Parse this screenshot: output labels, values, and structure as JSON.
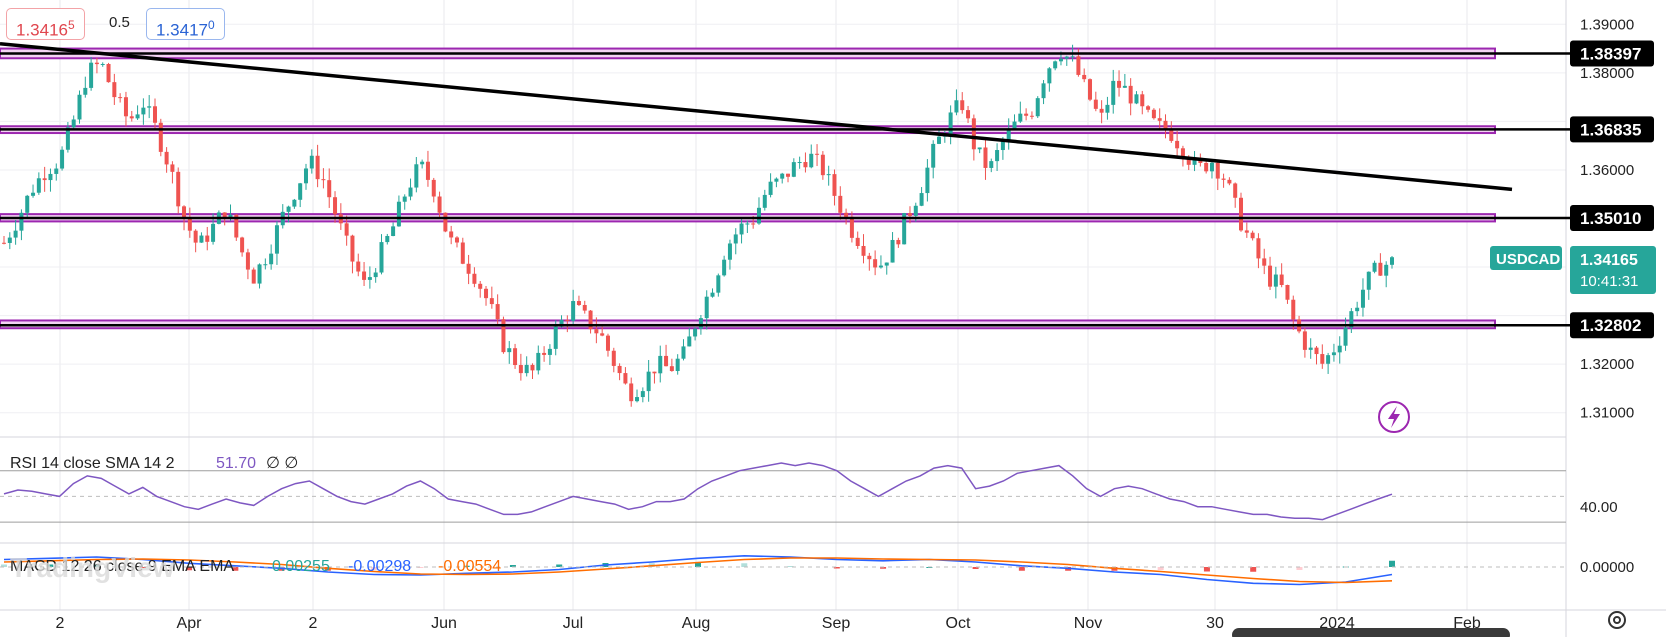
{
  "toolbar": {
    "sell_price": "1.3416",
    "sell_price_sup": "5",
    "spread": "0.5",
    "buy_price": "1.3417",
    "buy_price_sup": "0"
  },
  "watermark": "TradingView",
  "chart_data": [
    {
      "type": "candlestick",
      "symbol": "USDCAD",
      "last_price": "1.34165",
      "countdown": "10:41:31",
      "ylim": [
        1.305,
        1.395
      ],
      "y_ticks": [
        "1.39000",
        "1.38000",
        "1.36000",
        "1.32000",
        "1.31000"
      ],
      "x_ticks": [
        "2",
        "Apr",
        "2",
        "Jun",
        "Jul",
        "Aug",
        "Sep",
        "Oct",
        "Nov",
        "30",
        "2024",
        "Feb"
      ],
      "support_resistance": [
        {
          "label": "1.38397",
          "value": 1.38397,
          "zone": [
            1.383,
            1.385
          ]
        },
        {
          "label": "1.36835",
          "value": 1.36835,
          "zone": [
            1.3676,
            1.369
          ]
        },
        {
          "label": "1.35010",
          "value": 1.3501,
          "zone": [
            1.3494,
            1.3509
          ]
        },
        {
          "label": "1.32802",
          "value": 1.32802,
          "zone": [
            1.3274,
            1.329
          ]
        }
      ],
      "trendline": {
        "start": [
          "2023-03",
          1.386
        ],
        "end": [
          "2024-02",
          1.356
        ]
      },
      "close_path": [
        1.345,
        1.35,
        1.356,
        1.36,
        1.362,
        1.37,
        1.38,
        1.382,
        1.375,
        1.37,
        1.374,
        1.368,
        1.36,
        1.35,
        1.344,
        1.348,
        1.352,
        1.344,
        1.338,
        1.343,
        1.35,
        1.356,
        1.362,
        1.358,
        1.35,
        1.342,
        1.336,
        1.342,
        1.348,
        1.356,
        1.361,
        1.356,
        1.346,
        1.342,
        1.338,
        1.332,
        1.324,
        1.32,
        1.318,
        1.323,
        1.328,
        1.332,
        1.329,
        1.326,
        1.32,
        1.314,
        1.316,
        1.32,
        1.319,
        1.322,
        1.33,
        1.336,
        1.344,
        1.348,
        1.35,
        1.356,
        1.358,
        1.361,
        1.363,
        1.36,
        1.354,
        1.348,
        1.344,
        1.34,
        1.344,
        1.35,
        1.356,
        1.364,
        1.37,
        1.374,
        1.364,
        1.36,
        1.366,
        1.37,
        1.372,
        1.38,
        1.385,
        1.382,
        1.376,
        1.37,
        1.378,
        1.376,
        1.372,
        1.369,
        1.368,
        1.364,
        1.36,
        1.362,
        1.358,
        1.35,
        1.344,
        1.338,
        1.336,
        1.328,
        1.323,
        1.32,
        1.324,
        1.33,
        1.336,
        1.34,
        1.341
      ],
      "close_x_range": [
        "2023-03-01",
        "2024-01-15"
      ]
    },
    {
      "type": "line",
      "title": "RSI 14 close SMA 14 2",
      "value": "51.70",
      "extra": "∅ ∅",
      "y_ticks": [
        "40.00"
      ],
      "values": [
        52,
        55,
        54,
        52,
        50,
        60,
        66,
        64,
        58,
        52,
        57,
        50,
        46,
        42,
        40,
        44,
        48,
        45,
        43,
        50,
        56,
        60,
        62,
        56,
        50,
        46,
        44,
        48,
        52,
        58,
        62,
        56,
        48,
        46,
        44,
        40,
        36,
        36,
        38,
        42,
        46,
        50,
        48,
        46,
        44,
        40,
        42,
        46,
        46,
        48,
        56,
        62,
        66,
        70,
        72,
        74,
        76,
        74,
        76,
        74,
        70,
        62,
        56,
        50,
        56,
        62,
        66,
        72,
        74,
        72,
        56,
        58,
        62,
        68,
        70,
        72,
        74,
        66,
        56,
        50,
        56,
        58,
        56,
        52,
        48,
        46,
        42,
        42,
        40,
        38,
        36,
        36,
        34,
        33,
        33,
        32,
        36,
        40,
        44,
        48,
        51.7
      ]
    },
    {
      "type": "macd",
      "title": "MACD 12 26 close 9 EMA EMA",
      "histogram": "0.00255",
      "macd": "-0.00298",
      "signal": "-0.00554",
      "y_ticks": [
        "0.00000"
      ],
      "macd_line": [
        0.003,
        0.0035,
        0.004,
        0.003,
        0.0015,
        0.0005,
        -0.0005,
        -0.002,
        -0.003,
        -0.0032,
        -0.0025,
        -0.002,
        -0.001,
        0.0008,
        0.002,
        0.0035,
        0.0045,
        0.004,
        0.003,
        0.0025,
        0.003,
        0.002,
        0.0005,
        -0.0005,
        -0.002,
        -0.003,
        -0.005,
        -0.0065,
        -0.007,
        -0.006,
        -0.003
      ],
      "signal_line": [
        0.002,
        0.0025,
        0.003,
        0.0032,
        0.0028,
        0.002,
        0.001,
        -0.0005,
        -0.0018,
        -0.0028,
        -0.003,
        -0.0028,
        -0.002,
        -0.0008,
        0.0005,
        0.0018,
        0.003,
        0.0036,
        0.0036,
        0.0032,
        0.003,
        0.0028,
        0.002,
        0.001,
        -0.0005,
        -0.0018,
        -0.0032,
        -0.0046,
        -0.0058,
        -0.0062,
        -0.0055
      ]
    }
  ],
  "colors": {
    "up": "#26a69a",
    "down": "#ef5350",
    "zone_fill": "#f3d3f3",
    "zone_border": "#9c27b0",
    "trendline": "#000000",
    "rsi": "#7e57c2",
    "macd": "#2962ff",
    "signal": "#ff6d00",
    "tag_bg": "#000000",
    "symbol_tag": "#26a69a"
  }
}
